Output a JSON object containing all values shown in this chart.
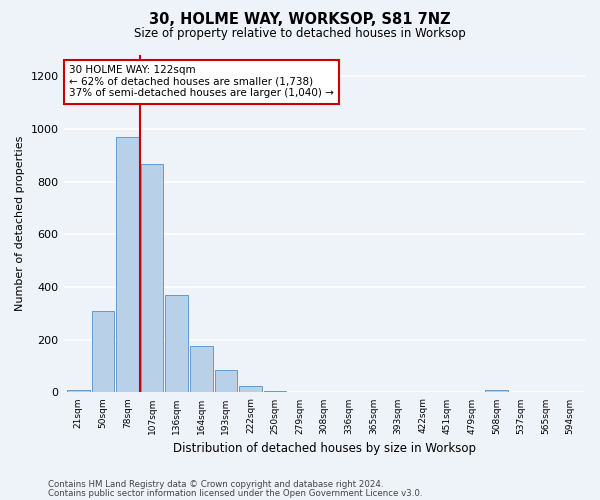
{
  "title1": "30, HOLME WAY, WORKSOP, S81 7NZ",
  "title2": "Size of property relative to detached houses in Worksop",
  "xlabel": "Distribution of detached houses by size in Worksop",
  "ylabel": "Number of detached properties",
  "bin_labels": [
    "21sqm",
    "50sqm",
    "78sqm",
    "107sqm",
    "136sqm",
    "164sqm",
    "193sqm",
    "222sqm",
    "250sqm",
    "279sqm",
    "308sqm",
    "336sqm",
    "365sqm",
    "393sqm",
    "422sqm",
    "451sqm",
    "479sqm",
    "508sqm",
    "537sqm",
    "565sqm",
    "594sqm"
  ],
  "bar_values": [
    10,
    310,
    970,
    865,
    370,
    175,
    85,
    25,
    5,
    0,
    0,
    0,
    0,
    0,
    0,
    0,
    0,
    10,
    0,
    0,
    0
  ],
  "bar_color": "#b8d0e8",
  "bar_edgecolor": "#6699cc",
  "property_line_x": 3.0,
  "property_line_label": "30 HOLME WAY: 122sqm",
  "annotation_line1": "← 62% of detached houses are smaller (1,738)",
  "annotation_line2": "37% of semi-detached houses are larger (1,040) →",
  "vline_color": "#cc0000",
  "annotation_box_facecolor": "#ffffff",
  "annotation_box_edgecolor": "#cc0000",
  "ylim": [
    0,
    1280
  ],
  "yticks": [
    0,
    200,
    400,
    600,
    800,
    1000,
    1200
  ],
  "footer1": "Contains HM Land Registry data © Crown copyright and database right 2024.",
  "footer2": "Contains public sector information licensed under the Open Government Licence v3.0.",
  "background_color": "#eef2f9",
  "grid_color": "#ffffff"
}
